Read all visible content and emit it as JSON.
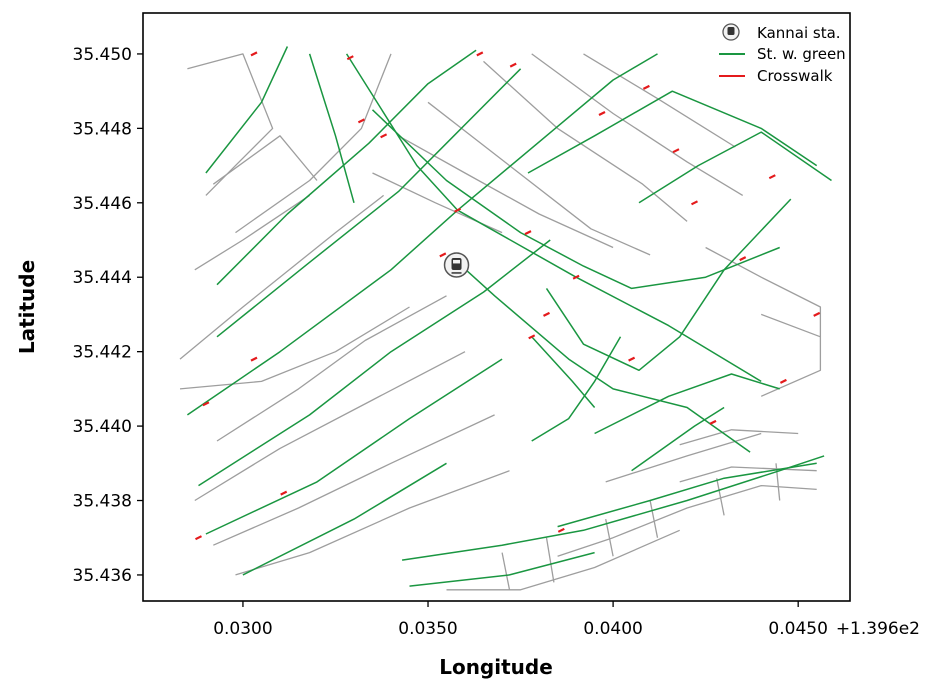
{
  "axes": {
    "xlabel": "Longitude",
    "ylabel": "Latitude",
    "x_offset_label": "+1.396e2",
    "xlim": [
      0.0273,
      0.0464
    ],
    "ylim": [
      35.4353,
      35.4511
    ],
    "x_ticks": [
      0.03,
      0.035,
      0.04,
      0.045
    ],
    "x_tick_labels": [
      "0.0300",
      "0.0350",
      "0.0400",
      "0.0450"
    ],
    "y_ticks": [
      35.436,
      35.438,
      35.44,
      35.442,
      35.444,
      35.446,
      35.448,
      35.45
    ],
    "y_tick_labels": [
      "35.436",
      "35.438",
      "35.440",
      "35.442",
      "35.444",
      "35.446",
      "35.448",
      "35.450"
    ]
  },
  "legend": {
    "placement": "top-right",
    "entries": [
      {
        "label": "Kannai sta.",
        "icon": "train-station-icon"
      },
      {
        "label": "St. w. green",
        "color": "#1a9641"
      },
      {
        "label": "Crosswalk",
        "color": "#e41a1c"
      }
    ]
  },
  "colors": {
    "street": "#9e9e9e",
    "green_street": "#1a9641",
    "crosswalk": "#e41a1c"
  },
  "map_data": {
    "station": {
      "name": "Kannai sta.",
      "x": 0.03577,
      "y": 35.44433
    },
    "green_streets": [
      [
        [
          0.029,
          35.4468
        ],
        [
          0.0305,
          35.4487
        ],
        [
          0.0312,
          35.4502
        ]
      ],
      [
        [
          0.0293,
          35.4438
        ],
        [
          0.0312,
          35.4457
        ],
        [
          0.0334,
          35.4476
        ],
        [
          0.035,
          35.4492
        ],
        [
          0.0363,
          35.4501
        ]
      ],
      [
        [
          0.0293,
          35.4424
        ],
        [
          0.0318,
          35.4444
        ],
        [
          0.0342,
          35.4463
        ],
        [
          0.0357,
          35.4478
        ],
        [
          0.0375,
          35.4496
        ]
      ],
      [
        [
          0.0285,
          35.4403
        ],
        [
          0.031,
          35.442
        ],
        [
          0.034,
          35.4442
        ],
        [
          0.0358,
          35.4458
        ],
        [
          0.04,
          35.4493
        ],
        [
          0.0412,
          35.45
        ]
      ],
      [
        [
          0.0288,
          35.4384
        ],
        [
          0.0318,
          35.4403
        ],
        [
          0.034,
          35.442
        ],
        [
          0.0365,
          35.4436
        ],
        [
          0.0383,
          35.445
        ]
      ],
      [
        [
          0.029,
          35.4371
        ],
        [
          0.032,
          35.4385
        ],
        [
          0.0345,
          35.4402
        ],
        [
          0.037,
          35.4418
        ]
      ],
      [
        [
          0.03,
          35.436
        ],
        [
          0.033,
          35.4375
        ],
        [
          0.0355,
          35.439
        ]
      ],
      [
        [
          0.0318,
          35.45
        ],
        [
          0.0325,
          35.4478
        ],
        [
          0.033,
          35.446
        ]
      ],
      [
        [
          0.0328,
          35.45
        ],
        [
          0.0347,
          35.447
        ],
        [
          0.0358,
          35.4458
        ],
        [
          0.039,
          35.444
        ],
        [
          0.0415,
          35.4427
        ],
        [
          0.044,
          35.4412
        ]
      ],
      [
        [
          0.0335,
          35.4485
        ],
        [
          0.0355,
          35.4466
        ],
        [
          0.0375,
          35.4452
        ],
        [
          0.0392,
          35.4443
        ],
        [
          0.0405,
          35.4437
        ],
        [
          0.0425,
          35.444
        ],
        [
          0.0445,
          35.4448
        ]
      ],
      [
        [
          0.0358,
          35.4444
        ],
        [
          0.0368,
          35.4435
        ],
        [
          0.0388,
          35.4418
        ],
        [
          0.04,
          35.441
        ],
        [
          0.042,
          35.4405
        ],
        [
          0.0437,
          35.4393
        ]
      ],
      [
        [
          0.0402,
          35.4424
        ],
        [
          0.0395,
          35.4412
        ],
        [
          0.0388,
          35.4402
        ],
        [
          0.0378,
          35.4396
        ]
      ],
      [
        [
          0.0378,
          35.4424
        ],
        [
          0.0389,
          35.4412
        ],
        [
          0.0395,
          35.4405
        ]
      ],
      [
        [
          0.0382,
          35.4437
        ],
        [
          0.0392,
          35.4422
        ],
        [
          0.0407,
          35.4415
        ],
        [
          0.0418,
          35.4424
        ],
        [
          0.043,
          35.4442
        ],
        [
          0.0448,
          35.4461
        ]
      ],
      [
        [
          0.0407,
          35.446
        ],
        [
          0.0423,
          35.447
        ],
        [
          0.044,
          35.4479
        ],
        [
          0.0459,
          35.4466
        ]
      ],
      [
        [
          0.0377,
          35.4468
        ],
        [
          0.0395,
          35.4478
        ],
        [
          0.0416,
          35.449
        ],
        [
          0.044,
          35.448
        ],
        [
          0.0455,
          35.447
        ]
      ],
      [
        [
          0.0395,
          35.4398
        ],
        [
          0.0415,
          35.4408
        ],
        [
          0.0432,
          35.4414
        ],
        [
          0.0445,
          35.441
        ]
      ],
      [
        [
          0.0405,
          35.4388
        ],
        [
          0.0422,
          35.44
        ],
        [
          0.043,
          35.4405
        ]
      ],
      [
        [
          0.0385,
          35.4373
        ],
        [
          0.041,
          35.438
        ],
        [
          0.043,
          35.4386
        ],
        [
          0.0455,
          35.439
        ]
      ],
      [
        [
          0.0343,
          35.4364
        ],
        [
          0.037,
          35.4368
        ],
        [
          0.0392,
          35.4372
        ],
        [
          0.042,
          35.438
        ],
        [
          0.0445,
          35.4388
        ],
        [
          0.0457,
          35.4392
        ]
      ],
      [
        [
          0.0345,
          35.4357
        ],
        [
          0.0372,
          35.436
        ],
        [
          0.0395,
          35.4366
        ]
      ]
    ],
    "gray_streets": [
      [
        [
          0.0285,
          35.4496
        ],
        [
          0.03,
          35.45
        ],
        [
          0.0308,
          35.448
        ],
        [
          0.0298,
          35.447
        ],
        [
          0.029,
          35.4462
        ]
      ],
      [
        [
          0.0292,
          35.4465
        ],
        [
          0.031,
          35.4478
        ],
        [
          0.032,
          35.4466
        ]
      ],
      [
        [
          0.0298,
          35.4452
        ],
        [
          0.0318,
          35.4466
        ],
        [
          0.0332,
          35.448
        ],
        [
          0.034,
          35.45
        ]
      ],
      [
        [
          0.0287,
          35.4442
        ],
        [
          0.03,
          35.445
        ],
        [
          0.0318,
          35.4462
        ]
      ],
      [
        [
          0.0283,
          35.4418
        ],
        [
          0.03,
          35.4432
        ],
        [
          0.0325,
          35.4452
        ],
        [
          0.0338,
          35.4462
        ]
      ],
      [
        [
          0.0283,
          35.441
        ],
        [
          0.0305,
          35.4412
        ],
        [
          0.0325,
          35.442
        ],
        [
          0.0345,
          35.4432
        ]
      ],
      [
        [
          0.0293,
          35.4396
        ],
        [
          0.0315,
          35.441
        ],
        [
          0.0333,
          35.4423
        ],
        [
          0.0355,
          35.4435
        ]
      ],
      [
        [
          0.0287,
          35.438
        ],
        [
          0.031,
          35.4394
        ],
        [
          0.0335,
          35.4407
        ],
        [
          0.036,
          35.442
        ]
      ],
      [
        [
          0.0292,
          35.4368
        ],
        [
          0.0315,
          35.4378
        ],
        [
          0.034,
          35.439
        ],
        [
          0.0368,
          35.4403
        ]
      ],
      [
        [
          0.0298,
          35.436
        ],
        [
          0.0318,
          35.4366
        ],
        [
          0.0345,
          35.4378
        ],
        [
          0.0372,
          35.4388
        ]
      ],
      [
        [
          0.035,
          35.4487
        ],
        [
          0.0372,
          35.447
        ],
        [
          0.0394,
          35.4453
        ],
        [
          0.041,
          35.4446
        ]
      ],
      [
        [
          0.0365,
          35.4498
        ],
        [
          0.0385,
          35.448
        ],
        [
          0.0408,
          35.4465
        ],
        [
          0.042,
          35.4455
        ]
      ],
      [
        [
          0.0378,
          35.45
        ],
        [
          0.04,
          35.4484
        ],
        [
          0.042,
          35.4471
        ],
        [
          0.0435,
          35.4462
        ]
      ],
      [
        [
          0.0392,
          35.45
        ],
        [
          0.0412,
          35.4488
        ],
        [
          0.0433,
          35.4475
        ]
      ],
      [
        [
          0.0342,
          35.4478
        ],
        [
          0.036,
          35.4468
        ],
        [
          0.038,
          35.4457
        ],
        [
          0.04,
          35.4448
        ]
      ],
      [
        [
          0.0335,
          35.4468
        ],
        [
          0.0352,
          35.446
        ],
        [
          0.037,
          35.4452
        ]
      ],
      [
        [
          0.0425,
          35.4448
        ],
        [
          0.044,
          35.444
        ],
        [
          0.0456,
          35.4432
        ],
        [
          0.0456,
          35.4415
        ],
        [
          0.044,
          35.4408
        ]
      ],
      [
        [
          0.044,
          35.443
        ],
        [
          0.0456,
          35.4424
        ]
      ],
      [
        [
          0.0418,
          35.4395
        ],
        [
          0.0432,
          35.4399
        ],
        [
          0.045,
          35.4398
        ]
      ],
      [
        [
          0.0418,
          35.4385
        ],
        [
          0.0432,
          35.4389
        ],
        [
          0.0455,
          35.4388
        ]
      ],
      [
        [
          0.0398,
          35.4385
        ],
        [
          0.042,
          35.4392
        ],
        [
          0.044,
          35.4398
        ]
      ],
      [
        [
          0.0385,
          35.4365
        ],
        [
          0.04,
          35.437
        ],
        [
          0.042,
          35.4378
        ],
        [
          0.044,
          35.4384
        ],
        [
          0.0455,
          35.4383
        ]
      ],
      [
        [
          0.0355,
          35.4356
        ],
        [
          0.0375,
          35.4356
        ],
        [
          0.0395,
          35.4362
        ],
        [
          0.0418,
          35.4372
        ]
      ],
      [
        [
          0.0372,
          35.4356
        ],
        [
          0.037,
          35.4366
        ]
      ],
      [
        [
          0.0384,
          35.4358
        ],
        [
          0.0382,
          35.437
        ]
      ],
      [
        [
          0.04,
          35.4365
        ],
        [
          0.0398,
          35.4375
        ]
      ],
      [
        [
          0.0412,
          35.437
        ],
        [
          0.041,
          35.438
        ]
      ],
      [
        [
          0.043,
          35.4376
        ],
        [
          0.0428,
          35.4386
        ]
      ],
      [
        [
          0.0445,
          35.438
        ],
        [
          0.0444,
          35.439
        ]
      ]
    ],
    "crosswalks": [
      [
        0.0303,
        35.45
      ],
      [
        0.0329,
        35.4499
      ],
      [
        0.0364,
        35.45
      ],
      [
        0.0373,
        35.4497
      ],
      [
        0.0332,
        35.4482
      ],
      [
        0.0338,
        35.4478
      ],
      [
        0.0358,
        35.4458
      ],
      [
        0.0377,
        35.4452
      ],
      [
        0.039,
        35.444
      ],
      [
        0.0354,
        35.4446
      ],
      [
        0.0378,
        35.4424
      ],
      [
        0.0382,
        35.443
      ],
      [
        0.0405,
        35.4418
      ],
      [
        0.0417,
        35.4474
      ],
      [
        0.0422,
        35.446
      ],
      [
        0.0443,
        35.4467
      ],
      [
        0.0435,
        35.4445
      ],
      [
        0.0446,
        35.4412
      ],
      [
        0.0427,
        35.4401
      ],
      [
        0.0386,
        35.4372
      ],
      [
        0.0303,
        35.4418
      ],
      [
        0.029,
        35.4406
      ],
      [
        0.0311,
        35.4382
      ],
      [
        0.0288,
        35.437
      ],
      [
        0.0455,
        35.443
      ],
      [
        0.0409,
        35.4491
      ],
      [
        0.0397,
        35.4484
      ]
    ]
  }
}
